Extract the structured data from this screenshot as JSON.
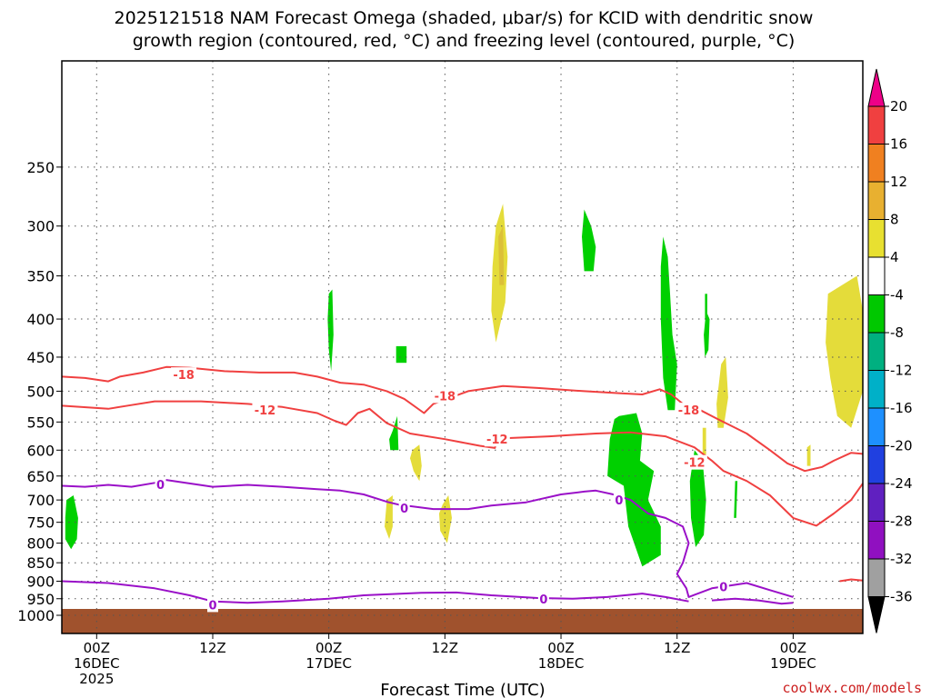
{
  "chart_data": {
    "type": "heatmap",
    "title_line1": "2025121518 NAM Forecast Omega (shaded, μbar/s) for KCID with dendritic snow",
    "title_line2": "growth region (contoured, red, °C) and freezing level (contoured, purple, °C)",
    "xlabel": "Forecast Time (UTC)",
    "credit": "coolwx.com/models",
    "y_axis": {
      "scale": "log-pressure",
      "inverted": true,
      "range": [
        1000,
        180
      ],
      "ticks": [
        "250",
        "300",
        "350",
        "400",
        "450",
        "500",
        "550",
        "600",
        "650",
        "700",
        "750",
        "800",
        "850",
        "900",
        "950",
        "1000"
      ]
    },
    "x_axis": {
      "range_hours": [
        -3,
        66
      ],
      "ticks": [
        {
          "h": 0,
          "l1": "00Z",
          "l2": "16DEC",
          "l3": "2025"
        },
        {
          "h": 10,
          "l1": "12Z",
          "l2": "",
          "l3": ""
        },
        {
          "h": 20,
          "l1": "00Z",
          "l2": "17DEC",
          "l3": ""
        },
        {
          "h": 30,
          "l1": "12Z",
          "l2": "",
          "l3": ""
        },
        {
          "h": 40,
          "l1": "00Z",
          "l2": "18DEC",
          "l3": ""
        },
        {
          "h": 50,
          "l1": "12Z",
          "l2": "",
          "l3": ""
        },
        {
          "h": 60,
          "l1": "00Z",
          "l2": "19DEC",
          "l3": ""
        }
      ]
    },
    "grid": true,
    "colorbar": {
      "levels": [
        "20",
        "16",
        "12",
        "8",
        "4",
        "-4",
        "-8",
        "-12",
        "-16",
        "-20",
        "-24",
        "-28",
        "-32",
        "-36"
      ],
      "colors": [
        "#ee0088",
        "#f04040",
        "#f08020",
        "#e8b030",
        "#e8e030",
        "#ffffff",
        "#00c800",
        "#00b080",
        "#00b0c8",
        "#1e90ff",
        "#2040e0",
        "#6020c0",
        "#9010c0",
        "#a0a0a0",
        "#000000"
      ]
    },
    "terrain_color": "#a0522d",
    "contours": {
      "red_color": "#f04040",
      "purple_color": "#9a10c8",
      "labels": [
        {
          "text": "-18",
          "h": 7.5,
          "p": 475,
          "color": "red"
        },
        {
          "text": "-12",
          "h": 14.5,
          "p": 530,
          "color": "red"
        },
        {
          "text": "-18",
          "h": 30,
          "p": 507,
          "color": "red"
        },
        {
          "text": "-12",
          "h": 34.5,
          "p": 580,
          "color": "red"
        },
        {
          "text": "-18",
          "h": 51,
          "p": 530,
          "color": "red"
        },
        {
          "text": "-12",
          "h": 51.5,
          "p": 623,
          "color": "red"
        },
        {
          "text": "0",
          "h": 5.5,
          "p": 667,
          "color": "purple"
        },
        {
          "text": "0",
          "h": 26.5,
          "p": 718,
          "color": "purple"
        },
        {
          "text": "0",
          "h": 45,
          "p": 700,
          "color": "purple"
        },
        {
          "text": "0",
          "h": 10,
          "p": 968,
          "color": "purple"
        },
        {
          "text": "0",
          "h": 38.5,
          "p": 950,
          "color": "purple"
        },
        {
          "text": "0",
          "h": 54,
          "p": 915,
          "color": "purple"
        }
      ]
    }
  }
}
